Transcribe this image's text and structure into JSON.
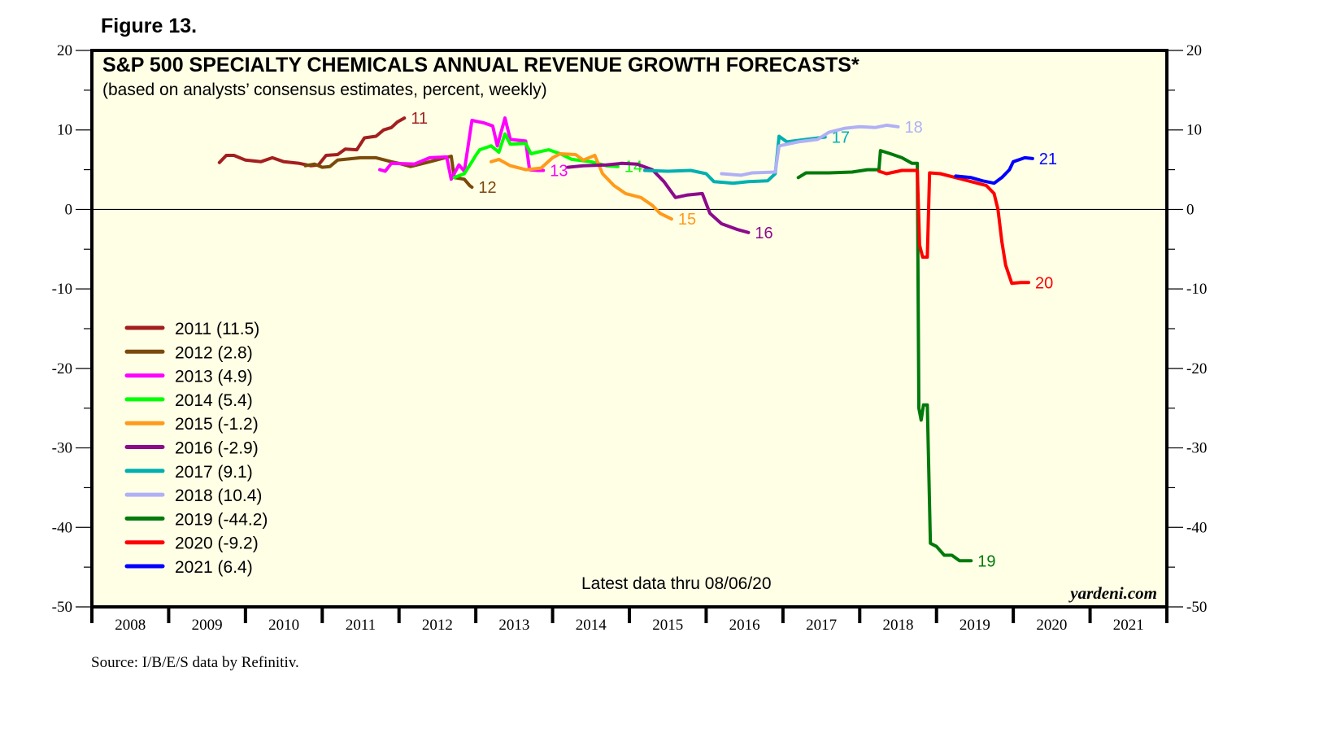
{
  "figure_label": "Figure 13.",
  "source": "Source: I/B/E/S data by Refinitiv.",
  "chart_data": {
    "type": "line",
    "title": "S&P 500 SPECIALTY CHEMICALS ANNUAL REVENUE GROWTH FORECASTS*",
    "subtitle": "(based on analysts’ consensus estimates, percent, weekly)",
    "xlabel": "",
    "ylabel": "",
    "xlim": [
      2008,
      2022
    ],
    "ylim": [
      -50,
      20
    ],
    "yticks": [
      20,
      10,
      0,
      -10,
      -20,
      -30,
      -40,
      -50
    ],
    "xtick_labels": [
      "2008",
      "2009",
      "2010",
      "2011",
      "2012",
      "2013",
      "2014",
      "2015",
      "2016",
      "2017",
      "2018",
      "2019",
      "2020",
      "2021"
    ],
    "zero_line": true,
    "grid": false,
    "background": "#ffffe6",
    "note": "Latest data thru 08/06/20",
    "watermark": "yardeni.com",
    "legend_position": "left",
    "series": [
      {
        "name": "2011",
        "legend": "2011 (11.5)",
        "end_label": "11",
        "color": "#a31f1f",
        "points": [
          [
            2009.66,
            5.9
          ],
          [
            2009.75,
            6.8
          ],
          [
            2009.85,
            6.8
          ],
          [
            2010.0,
            6.2
          ],
          [
            2010.2,
            6.0
          ],
          [
            2010.35,
            6.5
          ],
          [
            2010.5,
            6.0
          ],
          [
            2010.7,
            5.8
          ],
          [
            2010.85,
            5.5
          ],
          [
            2010.95,
            5.6
          ],
          [
            2011.05,
            6.8
          ],
          [
            2011.2,
            6.9
          ],
          [
            2011.3,
            7.6
          ],
          [
            2011.45,
            7.5
          ],
          [
            2011.55,
            9.0
          ],
          [
            2011.7,
            9.2
          ],
          [
            2011.8,
            10.0
          ],
          [
            2011.9,
            10.3
          ],
          [
            2011.98,
            11.0
          ],
          [
            2012.07,
            11.5
          ]
        ]
      },
      {
        "name": "2012",
        "legend": "2012 (2.8)",
        "end_label": "12",
        "color": "#7a4a0a",
        "points": [
          [
            2010.78,
            5.5
          ],
          [
            2010.9,
            5.7
          ],
          [
            2011.0,
            5.3
          ],
          [
            2011.1,
            5.4
          ],
          [
            2011.2,
            6.2
          ],
          [
            2011.5,
            6.5
          ],
          [
            2011.7,
            6.5
          ],
          [
            2011.9,
            6.0
          ],
          [
            2012.0,
            5.8
          ],
          [
            2012.15,
            5.4
          ],
          [
            2012.4,
            6.0
          ],
          [
            2012.68,
            6.7
          ],
          [
            2012.72,
            4.0
          ],
          [
            2012.85,
            3.8
          ],
          [
            2012.92,
            3.0
          ],
          [
            2012.95,
            2.8
          ]
        ]
      },
      {
        "name": "2013",
        "legend": "2013 (4.9)",
        "end_label": "13",
        "color": "#ff00ff",
        "points": [
          [
            2011.75,
            5.0
          ],
          [
            2011.82,
            4.8
          ],
          [
            2011.9,
            5.8
          ],
          [
            2012.2,
            5.7
          ],
          [
            2012.4,
            6.5
          ],
          [
            2012.62,
            6.6
          ],
          [
            2012.68,
            3.8
          ],
          [
            2012.78,
            5.6
          ],
          [
            2012.85,
            4.8
          ],
          [
            2012.95,
            11.2
          ],
          [
            2013.1,
            10.9
          ],
          [
            2013.22,
            10.5
          ],
          [
            2013.28,
            8.0
          ],
          [
            2013.38,
            11.5
          ],
          [
            2013.45,
            8.8
          ],
          [
            2013.65,
            8.6
          ],
          [
            2013.7,
            5.0
          ],
          [
            2013.8,
            4.9
          ],
          [
            2013.88,
            4.9
          ]
        ]
      },
      {
        "name": "2014",
        "legend": "2014 (5.4)",
        "end_label": "14",
        "color": "#00ff00",
        "points": [
          [
            2012.72,
            4.0
          ],
          [
            2012.85,
            4.5
          ],
          [
            2012.95,
            6.0
          ],
          [
            2013.0,
            6.8
          ],
          [
            2013.05,
            7.5
          ],
          [
            2013.2,
            8.0
          ],
          [
            2013.3,
            7.2
          ],
          [
            2013.38,
            9.5
          ],
          [
            2013.45,
            8.2
          ],
          [
            2013.65,
            8.3
          ],
          [
            2013.72,
            7.0
          ],
          [
            2013.85,
            7.3
          ],
          [
            2013.95,
            7.5
          ],
          [
            2014.1,
            7.0
          ],
          [
            2014.25,
            6.3
          ],
          [
            2014.5,
            6.0
          ],
          [
            2014.7,
            5.5
          ],
          [
            2014.85,
            5.4
          ]
        ]
      },
      {
        "name": "2015",
        "legend": "2015 (-1.2)",
        "end_label": "15",
        "color": "#ff9a1a",
        "points": [
          [
            2013.2,
            6.0
          ],
          [
            2013.3,
            6.3
          ],
          [
            2013.45,
            5.5
          ],
          [
            2013.65,
            5.0
          ],
          [
            2013.85,
            5.2
          ],
          [
            2014.0,
            6.5
          ],
          [
            2014.1,
            7.0
          ],
          [
            2014.3,
            6.9
          ],
          [
            2014.4,
            6.2
          ],
          [
            2014.55,
            6.8
          ],
          [
            2014.65,
            4.5
          ],
          [
            2014.8,
            3.0
          ],
          [
            2014.95,
            2.0
          ],
          [
            2015.15,
            1.5
          ],
          [
            2015.3,
            0.5
          ],
          [
            2015.4,
            -0.5
          ],
          [
            2015.55,
            -1.2
          ]
        ]
      },
      {
        "name": "2016",
        "legend": "2016 (-2.9)",
        "end_label": "16",
        "color": "#8c0a8c",
        "points": [
          [
            2014.2,
            5.3
          ],
          [
            2014.4,
            5.5
          ],
          [
            2014.7,
            5.6
          ],
          [
            2014.9,
            5.8
          ],
          [
            2015.1,
            5.7
          ],
          [
            2015.3,
            5.0
          ],
          [
            2015.45,
            3.5
          ],
          [
            2015.6,
            1.5
          ],
          [
            2015.75,
            1.8
          ],
          [
            2015.95,
            2.0
          ],
          [
            2016.05,
            -0.5
          ],
          [
            2016.2,
            -1.8
          ],
          [
            2016.4,
            -2.5
          ],
          [
            2016.55,
            -2.9
          ]
        ]
      },
      {
        "name": "2017",
        "legend": "2017 (9.1)",
        "end_label": "17",
        "color": "#00b0b0",
        "points": [
          [
            2015.2,
            4.9
          ],
          [
            2015.5,
            4.8
          ],
          [
            2015.8,
            4.9
          ],
          [
            2016.0,
            4.5
          ],
          [
            2016.1,
            3.5
          ],
          [
            2016.35,
            3.3
          ],
          [
            2016.55,
            3.5
          ],
          [
            2016.8,
            3.6
          ],
          [
            2016.9,
            4.5
          ],
          [
            2016.95,
            9.2
          ],
          [
            2017.05,
            8.5
          ],
          [
            2017.3,
            8.8
          ],
          [
            2017.55,
            9.1
          ]
        ]
      },
      {
        "name": "2018",
        "legend": "2018 (10.4)",
        "end_label": "18",
        "color": "#b0b0f5",
        "points": [
          [
            2016.2,
            4.5
          ],
          [
            2016.45,
            4.3
          ],
          [
            2016.6,
            4.6
          ],
          [
            2016.9,
            4.7
          ],
          [
            2016.95,
            8.0
          ],
          [
            2017.2,
            8.5
          ],
          [
            2017.45,
            8.8
          ],
          [
            2017.6,
            9.7
          ],
          [
            2017.8,
            10.2
          ],
          [
            2018.0,
            10.4
          ],
          [
            2018.2,
            10.3
          ],
          [
            2018.35,
            10.6
          ],
          [
            2018.5,
            10.4
          ]
        ]
      },
      {
        "name": "2019",
        "legend": "2019 (-44.2)",
        "end_label": "19",
        "color": "#007a0a",
        "points": [
          [
            2017.2,
            4.0
          ],
          [
            2017.3,
            4.6
          ],
          [
            2017.6,
            4.6
          ],
          [
            2017.9,
            4.7
          ],
          [
            2018.1,
            5.0
          ],
          [
            2018.25,
            5.0
          ],
          [
            2018.27,
            7.4
          ],
          [
            2018.4,
            7.0
          ],
          [
            2018.55,
            6.5
          ],
          [
            2018.68,
            5.8
          ],
          [
            2018.75,
            5.8
          ],
          [
            2018.77,
            -25.0
          ],
          [
            2018.8,
            -26.5
          ],
          [
            2018.83,
            -24.6
          ],
          [
            2018.88,
            -24.6
          ],
          [
            2018.92,
            -42.0
          ],
          [
            2019.0,
            -42.4
          ],
          [
            2019.1,
            -43.5
          ],
          [
            2019.2,
            -43.5
          ],
          [
            2019.3,
            -44.2
          ],
          [
            2019.45,
            -44.2
          ]
        ]
      },
      {
        "name": "2020",
        "legend": "2020 (-9.2)",
        "end_label": "20",
        "color": "#ff0000",
        "points": [
          [
            2018.25,
            4.8
          ],
          [
            2018.35,
            4.5
          ],
          [
            2018.55,
            4.9
          ],
          [
            2018.75,
            4.9
          ],
          [
            2018.78,
            -4.5
          ],
          [
            2018.82,
            -6.0
          ],
          [
            2018.88,
            -6.0
          ],
          [
            2018.91,
            4.6
          ],
          [
            2019.05,
            4.5
          ],
          [
            2019.25,
            4.0
          ],
          [
            2019.45,
            3.5
          ],
          [
            2019.65,
            3.0
          ],
          [
            2019.75,
            2.0
          ],
          [
            2019.8,
            0.0
          ],
          [
            2019.85,
            -4.0
          ],
          [
            2019.9,
            -7.0
          ],
          [
            2019.98,
            -9.3
          ],
          [
            2020.1,
            -9.2
          ],
          [
            2020.2,
            -9.2
          ]
        ]
      },
      {
        "name": "2021",
        "legend": "2021 (6.4)",
        "end_label": "21",
        "color": "#0000ff",
        "points": [
          [
            2019.25,
            4.2
          ],
          [
            2019.45,
            4.0
          ],
          [
            2019.6,
            3.6
          ],
          [
            2019.75,
            3.3
          ],
          [
            2019.85,
            4.0
          ],
          [
            2019.95,
            5.0
          ],
          [
            2020.0,
            6.0
          ],
          [
            2020.15,
            6.5
          ],
          [
            2020.25,
            6.4
          ]
        ]
      }
    ]
  }
}
